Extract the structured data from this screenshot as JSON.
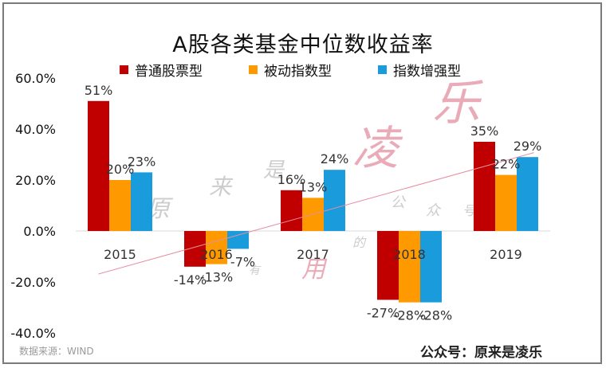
{
  "title": "A股各类基金中位数收益率",
  "source": "数据来源：WIND",
  "credit": "公众号：原来是凌乐",
  "watermark": [
    "原",
    "来",
    "是",
    "凌",
    "乐",
    "公",
    "众",
    "号",
    "有",
    "用",
    "的"
  ],
  "colors": {
    "series": [
      "#c00000",
      "#ff9900",
      "#1a9bdc"
    ],
    "trendline": "#e48ea0",
    "watermark": "#e8a3b2",
    "watermark_gray": "#c8c8c8"
  },
  "chart_data": {
    "type": "bar",
    "title": "A股各类基金中位数收益率",
    "categories": [
      "2015",
      "2016",
      "2017",
      "2018",
      "2019"
    ],
    "series": [
      {
        "name": "普通股票型",
        "values": [
          51,
          -14,
          16,
          -27,
          35
        ],
        "labels": [
          "51%",
          "-14%",
          "16%",
          "-27%",
          "35%"
        ]
      },
      {
        "name": "被动指数型",
        "values": [
          20,
          -13,
          13,
          -28,
          22
        ],
        "labels": [
          "20%",
          "-13%",
          "13%",
          "-28%",
          "22%"
        ]
      },
      {
        "name": "指数增强型",
        "values": [
          23,
          -7,
          24,
          -28,
          29
        ],
        "labels": [
          "23%",
          "-7%",
          "24%",
          "-28%",
          "29%"
        ]
      }
    ],
    "ylim": [
      -40,
      60
    ],
    "yticks": [
      "60.0%",
      "40.0%",
      "20.0%",
      "0.0%",
      "-20.0%",
      "-40.0%"
    ],
    "yticks_values": [
      60,
      40,
      20,
      0,
      -20,
      -40
    ],
    "trendline": {
      "from": [
        0,
        -15
      ],
      "to": [
        4,
        32
      ]
    },
    "legend_position": "top",
    "grid": false
  }
}
